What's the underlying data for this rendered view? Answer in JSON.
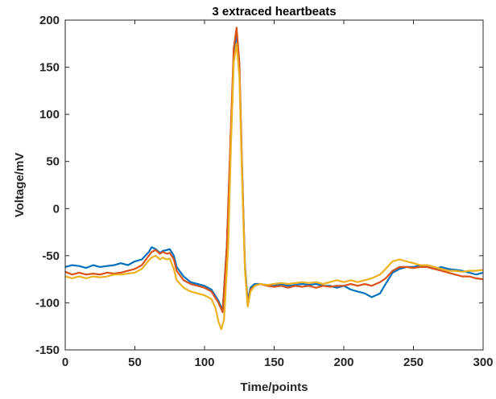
{
  "chart_data": {
    "type": "line",
    "title": "3 extraced heartbeats",
    "xlabel": "Time/points",
    "ylabel": "Voltage/mV",
    "xlim": [
      0,
      300
    ],
    "ylim": [
      -150,
      200
    ],
    "xticks": [
      0,
      50,
      100,
      150,
      200,
      250,
      300
    ],
    "xtick_labels": [
      "0",
      "50",
      "100",
      "150",
      "200",
      "250",
      "300"
    ],
    "yticks": [
      -150,
      -100,
      -50,
      0,
      50,
      100,
      150,
      200
    ],
    "ytick_labels": [
      "-150",
      "-100",
      "-50",
      "0",
      "50",
      "100",
      "150",
      "200"
    ],
    "grid": false,
    "legend": "none",
    "series": [
      {
        "color": "#0072BD",
        "x": [
          0,
          5,
          10,
          15,
          20,
          25,
          30,
          35,
          40,
          45,
          50,
          55,
          60,
          62,
          65,
          68,
          70,
          73,
          75,
          78,
          80,
          85,
          90,
          95,
          100,
          105,
          110,
          113,
          116,
          119,
          121,
          123,
          125,
          127,
          129,
          131,
          133,
          136,
          140,
          145,
          150,
          155,
          160,
          165,
          170,
          175,
          180,
          185,
          190,
          195,
          200,
          205,
          210,
          215,
          220,
          223,
          226,
          230,
          235,
          240,
          245,
          250,
          255,
          260,
          265,
          270,
          275,
          280,
          285,
          290,
          295,
          300
        ],
        "y": [
          -62,
          -60,
          -61,
          -63,
          -60,
          -62,
          -61,
          -60,
          -58,
          -60,
          -56,
          -54,
          -46,
          -41,
          -43,
          -47,
          -45,
          -44,
          -43,
          -50,
          -62,
          -72,
          -78,
          -80,
          -82,
          -86,
          -98,
          -108,
          -40,
          80,
          160,
          188,
          150,
          40,
          -60,
          -98,
          -84,
          -80,
          -80,
          -81,
          -82,
          -80,
          -82,
          -81,
          -80,
          -81,
          -80,
          -82,
          -82,
          -84,
          -82,
          -86,
          -88,
          -90,
          -94,
          -92,
          -90,
          -80,
          -68,
          -64,
          -62,
          -62,
          -60,
          -62,
          -64,
          -62,
          -64,
          -65,
          -66,
          -68,
          -70,
          -68
        ]
      },
      {
        "color": "#D95319",
        "x": [
          0,
          5,
          10,
          15,
          20,
          25,
          30,
          35,
          40,
          45,
          50,
          55,
          60,
          62,
          65,
          68,
          70,
          73,
          75,
          78,
          80,
          85,
          90,
          95,
          100,
          105,
          110,
          113,
          116,
          119,
          121,
          123,
          125,
          127,
          129,
          131,
          133,
          136,
          140,
          145,
          150,
          155,
          160,
          165,
          170,
          175,
          180,
          185,
          190,
          195,
          200,
          205,
          210,
          215,
          220,
          223,
          226,
          230,
          235,
          240,
          245,
          250,
          255,
          260,
          265,
          270,
          275,
          280,
          285,
          290,
          295,
          300
        ],
        "y": [
          -67,
          -70,
          -68,
          -70,
          -69,
          -70,
          -68,
          -69,
          -68,
          -66,
          -64,
          -60,
          -50,
          -46,
          -44,
          -48,
          -46,
          -48,
          -47,
          -54,
          -66,
          -76,
          -80,
          -82,
          -84,
          -88,
          -100,
          -110,
          -40,
          90,
          170,
          192,
          155,
          40,
          -62,
          -102,
          -86,
          -82,
          -80,
          -82,
          -83,
          -82,
          -84,
          -82,
          -83,
          -82,
          -84,
          -82,
          -83,
          -82,
          -82,
          -80,
          -82,
          -80,
          -82,
          -80,
          -78,
          -74,
          -66,
          -62,
          -62,
          -63,
          -62,
          -62,
          -64,
          -66,
          -68,
          -70,
          -72,
          -72,
          -74,
          -75
        ]
      },
      {
        "color": "#EDB120",
        "x": [
          0,
          5,
          10,
          15,
          20,
          25,
          30,
          35,
          40,
          45,
          50,
          55,
          60,
          62,
          65,
          68,
          70,
          73,
          75,
          78,
          80,
          85,
          90,
          95,
          100,
          105,
          108,
          110,
          112,
          114,
          117,
          119,
          121,
          123,
          125,
          127,
          129,
          131,
          133,
          136,
          140,
          145,
          150,
          155,
          160,
          165,
          170,
          175,
          180,
          185,
          190,
          195,
          200,
          205,
          210,
          215,
          220,
          223,
          226,
          230,
          235,
          240,
          245,
          250,
          255,
          260,
          265,
          270,
          275,
          280,
          285,
          290,
          295,
          300
        ],
        "y": [
          -72,
          -74,
          -72,
          -74,
          -72,
          -73,
          -72,
          -70,
          -70,
          -69,
          -68,
          -64,
          -55,
          -52,
          -50,
          -54,
          -52,
          -54,
          -53,
          -64,
          -76,
          -84,
          -88,
          -90,
          -92,
          -96,
          -106,
          -120,
          -128,
          -118,
          -40,
          70,
          155,
          175,
          140,
          30,
          -65,
          -104,
          -88,
          -82,
          -80,
          -81,
          -80,
          -79,
          -80,
          -79,
          -78,
          -79,
          -78,
          -80,
          -78,
          -76,
          -78,
          -76,
          -78,
          -76,
          -74,
          -72,
          -70,
          -64,
          -56,
          -54,
          -56,
          -58,
          -60,
          -60,
          -62,
          -64,
          -66,
          -66,
          -67,
          -66,
          -66,
          -65
        ]
      }
    ]
  }
}
